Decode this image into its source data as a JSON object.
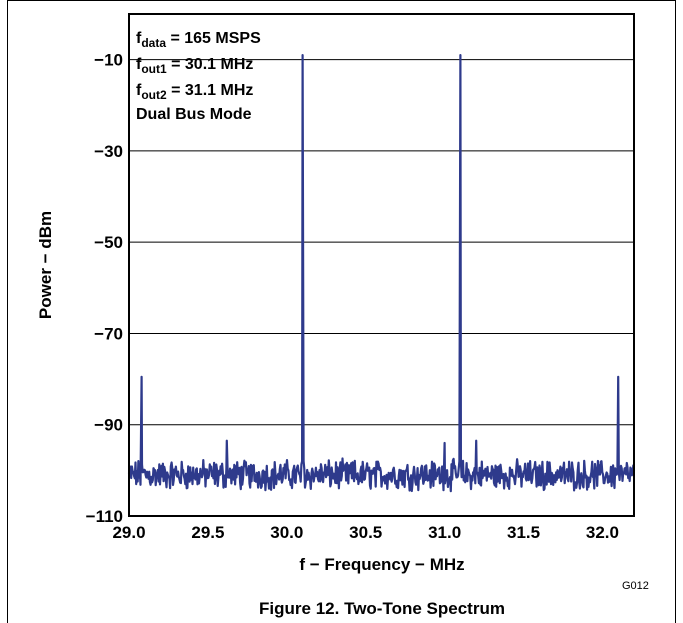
{
  "chart_data": {
    "type": "line",
    "xlabel": "f − Frequency − MHz",
    "ylabel": "Power − dBm",
    "xlim": [
      29.0,
      32.2
    ],
    "ylim": [
      -110,
      0
    ],
    "xticks": [
      29.0,
      29.5,
      30.0,
      30.5,
      31.0,
      31.5,
      32.0
    ],
    "xtick_labels": [
      "29.0",
      "29.5",
      "30.0",
      "30.5",
      "31.0",
      "31.5",
      "32.0"
    ],
    "yticks": [
      -10,
      -30,
      -50,
      -70,
      -90,
      -110
    ],
    "ytick_labels": [
      "−10",
      "−30",
      "−50",
      "−70",
      "−90",
      "−110"
    ],
    "grid": "horizontal",
    "line_color": "#2e3a8c",
    "noise_floor_dbm": -101,
    "peaks": [
      {
        "x": 29.08,
        "y": -79.5
      },
      {
        "x": 29.62,
        "y": -93.5
      },
      {
        "x": 30.1,
        "y": -9
      },
      {
        "x": 31.1,
        "y": -9
      },
      {
        "x": 31.0,
        "y": -94
      },
      {
        "x": 31.2,
        "y": -93.5
      },
      {
        "x": 32.1,
        "y": -79.5
      }
    ],
    "annotations": {
      "fdata_base": "f",
      "fdata_sub": "data",
      "fdata_value": " = 165 MSPS",
      "fout1_base": "f",
      "fout1_sub": "out1",
      "fout1_value": " = 30.1 MHz",
      "fout2_base": "f",
      "fout2_sub": "out2",
      "fout2_value": " = 31.1 MHz",
      "mode": "Dual Bus Mode"
    }
  },
  "figure_code": "G012",
  "caption": "Figure 12. Two-Tone Spectrum"
}
